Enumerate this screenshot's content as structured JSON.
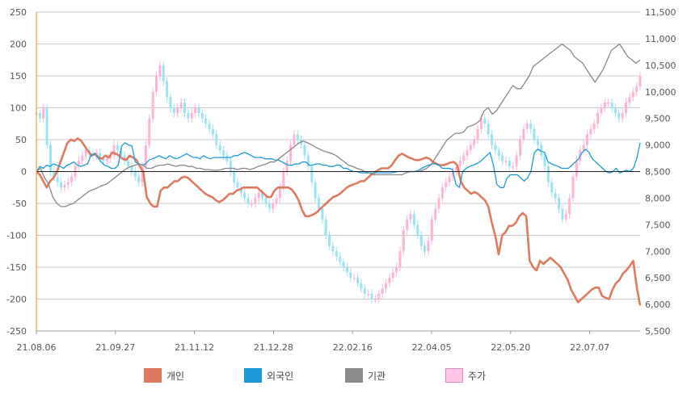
{
  "chart_data": {
    "type": "line",
    "title": "",
    "x_tick_labels": [
      "21.08.06",
      "21.09.27",
      "21.11.12",
      "21.12.28",
      "22.02.16",
      "22.04.05",
      "22.05.20",
      "22.07.07"
    ],
    "y_left": {
      "min": -250,
      "max": 250,
      "step": 50,
      "ticks": [
        "250",
        "200",
        "150",
        "100",
        "50",
        "0",
        "-50",
        "-100",
        "-150",
        "-200",
        "-250"
      ]
    },
    "y_right": {
      "min": 5500,
      "max": 11500,
      "step": 500,
      "ticks": [
        "11,500",
        "11,000",
        "10,500",
        "10,000",
        "9,500",
        "9,000",
        "8,500",
        "8,000",
        "7,500",
        "7,000",
        "6,500",
        "6,000",
        "5,500"
      ]
    },
    "grid": true,
    "legend_position": "bottom",
    "series": [
      {
        "name": "개인",
        "type": "line",
        "axis": "left",
        "color": "#e07a5f",
        "values": [
          0,
          -5,
          -15,
          -25,
          -15,
          -10,
          0,
          15,
          30,
          45,
          50,
          48,
          52,
          48,
          40,
          32,
          25,
          28,
          22,
          20,
          25,
          22,
          30,
          28,
          25,
          20,
          18,
          25,
          22,
          18,
          8,
          0,
          -40,
          -50,
          -55,
          -55,
          -30,
          -25,
          -25,
          -20,
          -15,
          -15,
          -10,
          -8,
          -10,
          -15,
          -20,
          -25,
          -30,
          -35,
          -38,
          -40,
          -45,
          -48,
          -45,
          -40,
          -35,
          -35,
          -30,
          -28,
          -25,
          -25,
          -25,
          -25,
          -25,
          -30,
          -35,
          -40,
          -40,
          -30,
          -25,
          -25,
          -25,
          -25,
          -28,
          -35,
          -45,
          -60,
          -70,
          -70,
          -68,
          -65,
          -60,
          -55,
          -50,
          -45,
          -40,
          -38,
          -35,
          -30,
          -25,
          -22,
          -20,
          -18,
          -15,
          -15,
          -10,
          -5,
          -2,
          2,
          5,
          5,
          5,
          10,
          18,
          25,
          28,
          25,
          22,
          20,
          18,
          18,
          20,
          22,
          20,
          15,
          12,
          10,
          10,
          12,
          14,
          15,
          10,
          -15,
          -25,
          -30,
          -35,
          -32,
          -35,
          -40,
          -45,
          -55,
          -80,
          -100,
          -130,
          -100,
          -95,
          -85,
          -85,
          -80,
          -70,
          -65,
          -70,
          -140,
          -150,
          -155,
          -140,
          -145,
          -140,
          -135,
          -140,
          -145,
          -150,
          -160,
          -170,
          -185,
          -195,
          -205,
          -200,
          -195,
          -190,
          -185,
          -182,
          -182,
          -195,
          -198,
          -200,
          -185,
          -175,
          -170,
          -160,
          -155,
          -148,
          -140,
          -180,
          -210
        ]
      },
      {
        "name": "외국인",
        "type": "line",
        "axis": "left",
        "color": "#1a9bd7",
        "values": [
          0,
          8,
          5,
          10,
          8,
          12,
          10,
          8,
          5,
          10,
          12,
          15,
          10,
          8,
          10,
          12,
          25,
          28,
          22,
          15,
          10,
          8,
          5,
          5,
          10,
          40,
          45,
          42,
          40,
          15,
          12,
          10,
          12,
          18,
          20,
          22,
          25,
          22,
          20,
          25,
          22,
          20,
          22,
          25,
          28,
          25,
          22,
          22,
          20,
          25,
          22,
          20,
          22,
          22,
          22,
          22,
          22,
          22,
          25,
          25,
          28,
          30,
          28,
          25,
          22,
          22,
          22,
          20,
          20,
          20,
          18,
          18,
          15,
          12,
          10,
          10,
          12,
          12,
          15,
          15,
          10,
          10,
          12,
          12,
          10,
          10,
          8,
          8,
          10,
          10,
          5,
          5,
          2,
          0,
          0,
          -2,
          -2,
          -2,
          -2,
          -2,
          -2,
          -2,
          -2,
          -2,
          -2,
          -1,
          0,
          0,
          0,
          0,
          0,
          0,
          2,
          5,
          8,
          10,
          12,
          12,
          10,
          5,
          5,
          5,
          3,
          -20,
          -25,
          0,
          5,
          8,
          10,
          12,
          15,
          20,
          25,
          30,
          10,
          -20,
          -25,
          -25,
          -10,
          -5,
          -5,
          -5,
          -10,
          -15,
          -10,
          0,
          30,
          35,
          32,
          30,
          15,
          12,
          10,
          8,
          5,
          5,
          5,
          10,
          15,
          20,
          30,
          35,
          30,
          20,
          15,
          10,
          5,
          0,
          -2,
          0,
          5,
          -2,
          0,
          2,
          0,
          5,
          20,
          45
        ]
      },
      {
        "name": "기관",
        "type": "line",
        "axis": "left",
        "color": "#888888",
        "values": [
          0,
          5,
          -10,
          -20,
          -40,
          -50,
          -55,
          -55,
          -52,
          -50,
          -45,
          -40,
          -35,
          -30,
          -28,
          -25,
          -22,
          -20,
          -15,
          -10,
          -5,
          0,
          5,
          8,
          10,
          12,
          10,
          5,
          5,
          8,
          10,
          10,
          12,
          10,
          8,
          10,
          10,
          8,
          8,
          5,
          5,
          3,
          3,
          2,
          2,
          3,
          5,
          5,
          5,
          3,
          5,
          5,
          3,
          5,
          8,
          10,
          12,
          15,
          15,
          20,
          25,
          30,
          35,
          40,
          45,
          48,
          45,
          42,
          38,
          35,
          32,
          30,
          28,
          25,
          20,
          15,
          10,
          8,
          5,
          3,
          0,
          -2,
          -5,
          -5,
          -5,
          -5,
          -5,
          -5,
          -5,
          -5,
          -2,
          0,
          0,
          0,
          2,
          5,
          10,
          20,
          30,
          40,
          50,
          55,
          60,
          60,
          62,
          70,
          72,
          75,
          80,
          95,
          100,
          90,
          95,
          105,
          115,
          125,
          135,
          130,
          130,
          140,
          150,
          165,
          170,
          175,
          180,
          185,
          190,
          195,
          200,
          195,
          190,
          180,
          175,
          170,
          160,
          150,
          140,
          150,
          160,
          175,
          190,
          195,
          200,
          190,
          180,
          175,
          170,
          175
        ]
      },
      {
        "name": "주가",
        "type": "candlestick",
        "axis": "right",
        "color_up": "#ffb3d9",
        "color_down": "#9be3f0",
        "values": [
          9600,
          9500,
          9700,
          9000,
          8500,
          8400,
          8300,
          8200,
          8250,
          8300,
          8400,
          8600,
          8700,
          8800,
          8900,
          8850,
          8800,
          8850,
          8750,
          8700,
          8750,
          8800,
          9000,
          8900,
          8800,
          8700,
          8600,
          8500,
          8400,
          8300,
          8600,
          9000,
          9500,
          10000,
          10300,
          10500,
          10200,
          9900,
          9700,
          9600,
          9700,
          9800,
          9600,
          9500,
          9600,
          9700,
          9600,
          9500,
          9400,
          9300,
          9200,
          9000,
          8900,
          8800,
          8700,
          8500,
          8300,
          8200,
          8100,
          8000,
          7900,
          7900,
          8000,
          8100,
          8000,
          7900,
          7800,
          7900,
          8000,
          8200,
          8500,
          8700,
          9000,
          9200,
          9100,
          9000,
          8800,
          8600,
          8300,
          8000,
          7800,
          7600,
          7300,
          7100,
          7000,
          6900,
          6800,
          6700,
          6600,
          6500,
          6500,
          6400,
          6300,
          6200,
          6200,
          6100,
          6100,
          6200,
          6300,
          6400,
          6500,
          6600,
          6700,
          7000,
          7400,
          7600,
          7700,
          7500,
          7300,
          7100,
          7000,
          7200,
          7600,
          7800,
          8000,
          8200,
          8300,
          8400,
          8500,
          8600,
          8700,
          8800,
          8900,
          9000,
          9100,
          9300,
          9500,
          9400,
          9200,
          9000,
          8900,
          8800,
          8700,
          8700,
          8600,
          8600,
          8800,
          9100,
          9300,
          9400,
          9300,
          9100,
          9000,
          8800,
          8600,
          8300,
          8100,
          8000,
          7800,
          7600,
          7700,
          8000,
          8400,
          8700,
          8900,
          9000,
          9200,
          9300,
          9400,
          9600,
          9700,
          9800,
          9800,
          9700,
          9600,
          9500,
          9600,
          9800,
          9900,
          10000,
          10100,
          10300
        ]
      }
    ]
  }
}
